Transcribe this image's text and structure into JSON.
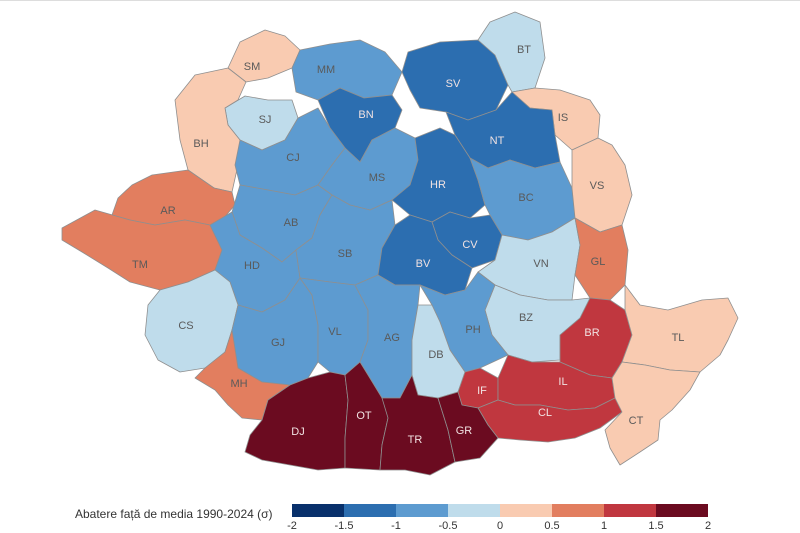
{
  "legend": {
    "title": "Abatere față de media 1990-2024 (σ)",
    "ticks": [
      "-2",
      "-1.5",
      "-1",
      "-0.5",
      "0",
      "0.5",
      "1",
      "1.5",
      "2"
    ],
    "colors": [
      "#08306b",
      "#2c6eb0",
      "#5d9bd0",
      "#bfdceb",
      "#f9cbb1",
      "#e27e5f",
      "#c0373f",
      "#6b0b20"
    ]
  },
  "counties": [
    {
      "code": "SM",
      "value": 0.3
    },
    {
      "code": "MM",
      "value": -0.7
    },
    {
      "code": "SV",
      "value": -1.2
    },
    {
      "code": "BT",
      "value": -0.3
    },
    {
      "code": "SJ",
      "value": -0.3
    },
    {
      "code": "BN",
      "value": -1.2
    },
    {
      "code": "IS",
      "value": 0.3
    },
    {
      "code": "BH",
      "value": 0.3
    },
    {
      "code": "CJ",
      "value": -0.7
    },
    {
      "code": "MS",
      "value": -0.7
    },
    {
      "code": "NT",
      "value": -1.2
    },
    {
      "code": "HR",
      "value": -1.2
    },
    {
      "code": "BC",
      "value": -0.7
    },
    {
      "code": "VS",
      "value": 0.3
    },
    {
      "code": "AR",
      "value": 0.7
    },
    {
      "code": "AB",
      "value": -0.7
    },
    {
      "code": "CV",
      "value": -1.2
    },
    {
      "code": "TM",
      "value": 0.7
    },
    {
      "code": "HD",
      "value": -0.7
    },
    {
      "code": "SB",
      "value": -0.7
    },
    {
      "code": "BV",
      "value": -1.2
    },
    {
      "code": "VN",
      "value": -0.3
    },
    {
      "code": "GL",
      "value": 0.7
    },
    {
      "code": "CS",
      "value": -0.3
    },
    {
      "code": "BZ",
      "value": -0.3
    },
    {
      "code": "BR",
      "value": 1.2
    },
    {
      "code": "TL",
      "value": 0.3
    },
    {
      "code": "GJ",
      "value": -0.7
    },
    {
      "code": "VL",
      "value": -0.7
    },
    {
      "code": "AG",
      "value": -0.7
    },
    {
      "code": "PH",
      "value": -0.7
    },
    {
      "code": "DB",
      "value": -0.3
    },
    {
      "code": "MH",
      "value": 0.7
    },
    {
      "code": "IF",
      "value": 1.2
    },
    {
      "code": "IL",
      "value": 1.2
    },
    {
      "code": "CL",
      "value": 1.2
    },
    {
      "code": "DJ",
      "value": 1.7
    },
    {
      "code": "OT",
      "value": 1.7
    },
    {
      "code": "TR",
      "value": 1.7
    },
    {
      "code": "GR",
      "value": 1.7
    },
    {
      "code": "CT",
      "value": 0.3
    }
  ]
}
